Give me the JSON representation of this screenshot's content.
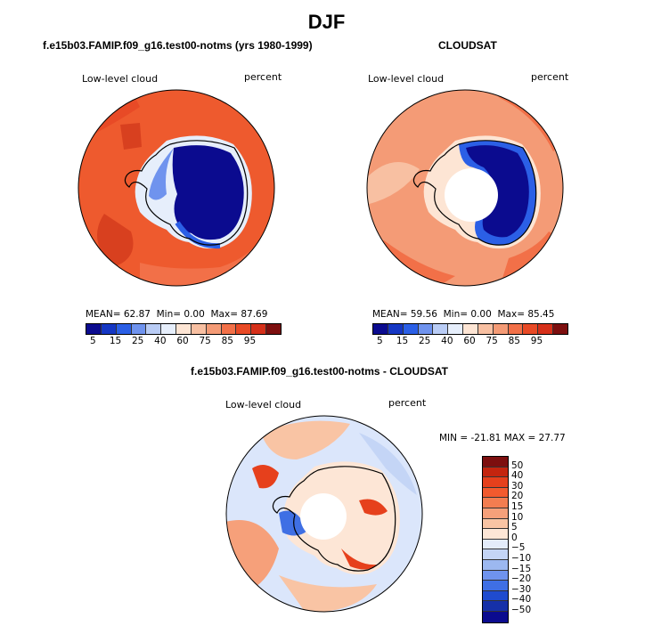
{
  "title": "DJF",
  "chart_data": [
    {
      "type": "heatmap",
      "projection": "south-polar-stereographic",
      "title": "f.e15b03.FAMIP.f09_g16.test00-notms (yrs 1980-1999)",
      "left_label": "Low-level cloud",
      "right_label": "percent",
      "stats": {
        "mean_label": "MEAN=",
        "mean": "62.87",
        "min_label": "Min=",
        "min": "0.00",
        "max_label": "Max=",
        "max": "87.69"
      },
      "colorbar": {
        "levels": [
          "5",
          "15",
          "25",
          "40",
          "60",
          "75",
          "85",
          "95"
        ],
        "colors": [
          "#0b0b8f",
          "#1537c4",
          "#2b5fe6",
          "#6f93ee",
          "#b9ccf5",
          "#e6eefb",
          "#fde5d4",
          "#f8c0a2",
          "#f49b76",
          "#f27048",
          "#e84a26",
          "#d6301a",
          "#7d0f0f"
        ]
      }
    },
    {
      "type": "heatmap",
      "projection": "south-polar-stereographic",
      "title": "CLOUDSAT",
      "left_label": "Low-level cloud",
      "right_label": "percent",
      "stats": {
        "mean_label": "MEAN=",
        "mean": "59.56",
        "min_label": "Min=",
        "min": "0.00",
        "max_label": "Max=",
        "max": "85.45"
      },
      "colorbar": {
        "levels": [
          "5",
          "15",
          "25",
          "40",
          "60",
          "75",
          "85",
          "95"
        ],
        "colors": [
          "#0b0b8f",
          "#1537c4",
          "#2b5fe6",
          "#6f93ee",
          "#b9ccf5",
          "#e6eefb",
          "#fde5d4",
          "#f8c0a2",
          "#f49b76",
          "#f27048",
          "#e84a26",
          "#d6301a",
          "#7d0f0f"
        ]
      }
    },
    {
      "type": "heatmap",
      "projection": "south-polar-stereographic",
      "title": "f.e15b03.FAMIP.f09_g16.test00-notms - CLOUDSAT",
      "left_label": "Low-level cloud",
      "right_label": "percent",
      "stats": {
        "min_label": "MIN =",
        "min": "-21.81",
        "max_label": "MAX =",
        "max": "27.77"
      },
      "colorbar": {
        "levels": [
          "50",
          "40",
          "30",
          "20",
          "15",
          "10",
          "5",
          "0",
          "−5",
          "−10",
          "−15",
          "−20",
          "−30",
          "−40",
          "−50"
        ],
        "colors": [
          "#7d0f0f",
          "#c4250f",
          "#e6401c",
          "#f25a2e",
          "#f37d50",
          "#f6a07a",
          "#f9c4a4",
          "#fde6d6",
          "#e4ecfa",
          "#c4d5f6",
          "#9cb8f0",
          "#6f93ee",
          "#3f6fe4",
          "#1f4bcf",
          "#1530a8",
          "#0b0b8f"
        ]
      }
    }
  ]
}
